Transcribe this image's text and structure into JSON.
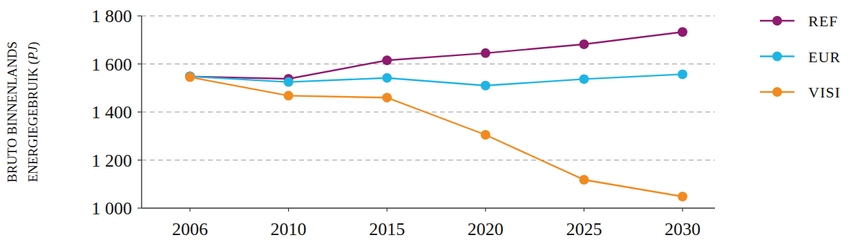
{
  "chart_data": {
    "type": "line",
    "y_label": [
      "BRUTO BINNENLANDS",
      "ENERGIEGEBRUIK (PJ)"
    ],
    "categories": [
      "2006",
      "2010",
      "2015",
      "2020",
      "2025",
      "2030"
    ],
    "series": [
      {
        "name": "REF",
        "color": "#8e1b6e",
        "marker": "circle",
        "values": [
          1548,
          1538,
          1615,
          1645,
          1682,
          1733
        ]
      },
      {
        "name": "EUR",
        "color": "#1eb4e4",
        "marker": "circle",
        "values": [
          1548,
          1525,
          1542,
          1510,
          1537,
          1557
        ]
      },
      {
        "name": "VISI",
        "color": "#f28a1f",
        "marker": "circle",
        "values": [
          1545,
          1468,
          1460,
          1305,
          1118,
          1048
        ]
      }
    ],
    "ylim": [
      1000,
      1800
    ],
    "yticks": [
      {
        "value": 1000,
        "label": "1 000"
      },
      {
        "value": 1200,
        "label": "1 200"
      },
      {
        "value": 1400,
        "label": "1 400"
      },
      {
        "value": 1600,
        "label": "1 600"
      },
      {
        "value": 1800,
        "label": "1 800"
      }
    ],
    "grid": true,
    "legend": "right"
  }
}
